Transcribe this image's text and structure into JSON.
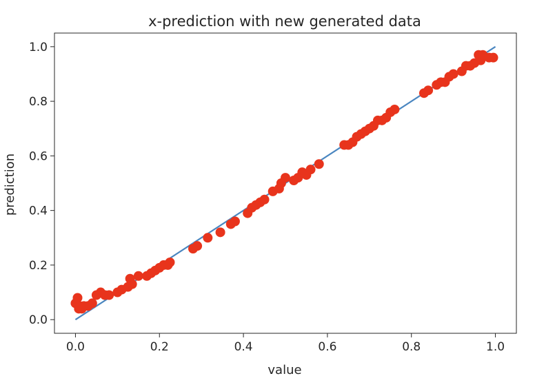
{
  "chart_data": {
    "type": "scatter",
    "title": "x-prediction with new generated data",
    "xlabel": "value",
    "ylabel": "prediction",
    "xlim": [
      -0.05,
      1.05
    ],
    "ylim": [
      -0.05,
      1.05
    ],
    "xticks": [
      0.0,
      0.2,
      0.4,
      0.6,
      0.8,
      1.0
    ],
    "xtick_labels": [
      "0.0",
      "0.2",
      "0.4",
      "0.6",
      "0.8",
      "1.0"
    ],
    "yticks": [
      0.0,
      0.2,
      0.4,
      0.6,
      0.8,
      1.0
    ],
    "ytick_labels": [
      "0.0",
      "0.2",
      "0.4",
      "0.6",
      "0.8",
      "1.0"
    ],
    "grid": false,
    "legend": "none",
    "series": [
      {
        "kind": "line",
        "color": "#4a86c0",
        "x": [
          0.0,
          1.0
        ],
        "y": [
          0.0,
          1.0
        ]
      },
      {
        "kind": "scatter",
        "color": "#e8341c",
        "x": [
          0.0,
          0.005,
          0.008,
          0.01,
          0.015,
          0.02,
          0.03,
          0.04,
          0.05,
          0.06,
          0.07,
          0.08,
          0.1,
          0.11,
          0.125,
          0.13,
          0.135,
          0.15,
          0.17,
          0.18,
          0.19,
          0.2,
          0.21,
          0.22,
          0.225,
          0.28,
          0.29,
          0.315,
          0.345,
          0.37,
          0.38,
          0.41,
          0.42,
          0.43,
          0.44,
          0.45,
          0.47,
          0.485,
          0.49,
          0.5,
          0.52,
          0.53,
          0.54,
          0.55,
          0.56,
          0.58,
          0.64,
          0.65,
          0.66,
          0.67,
          0.68,
          0.69,
          0.7,
          0.71,
          0.72,
          0.73,
          0.74,
          0.75,
          0.76,
          0.83,
          0.84,
          0.86,
          0.87,
          0.88,
          0.89,
          0.9,
          0.92,
          0.93,
          0.94,
          0.95,
          0.96,
          0.965,
          0.97,
          0.985,
          0.995
        ],
        "y": [
          0.06,
          0.08,
          0.04,
          0.05,
          0.04,
          0.05,
          0.05,
          0.06,
          0.09,
          0.1,
          0.09,
          0.09,
          0.1,
          0.11,
          0.12,
          0.15,
          0.13,
          0.16,
          0.16,
          0.17,
          0.18,
          0.19,
          0.2,
          0.2,
          0.21,
          0.26,
          0.27,
          0.3,
          0.32,
          0.35,
          0.36,
          0.39,
          0.41,
          0.42,
          0.43,
          0.44,
          0.47,
          0.48,
          0.5,
          0.52,
          0.51,
          0.52,
          0.54,
          0.53,
          0.55,
          0.57,
          0.64,
          0.64,
          0.65,
          0.67,
          0.68,
          0.69,
          0.7,
          0.71,
          0.73,
          0.73,
          0.74,
          0.76,
          0.77,
          0.83,
          0.84,
          0.86,
          0.87,
          0.87,
          0.89,
          0.9,
          0.91,
          0.93,
          0.93,
          0.94,
          0.97,
          0.95,
          0.97,
          0.96,
          0.96
        ]
      }
    ]
  }
}
